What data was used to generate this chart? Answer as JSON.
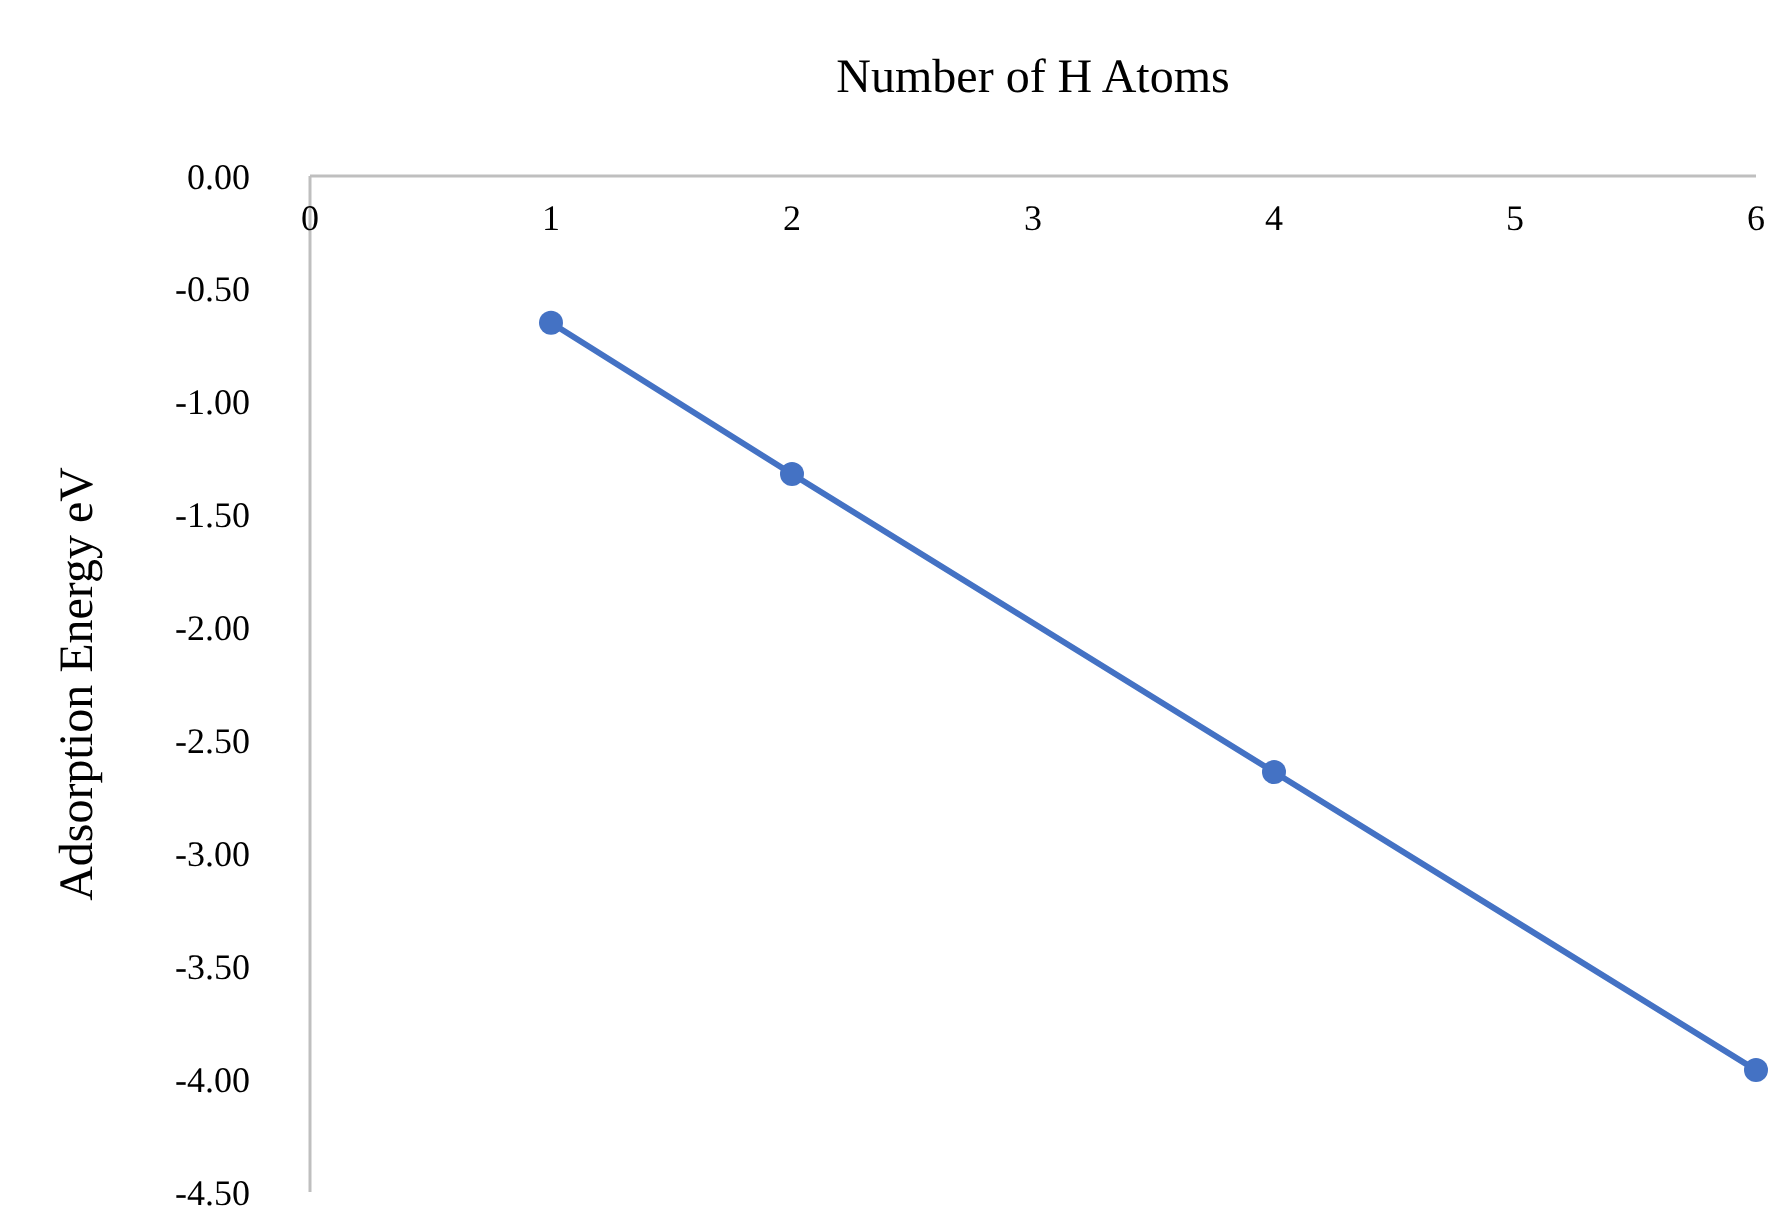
{
  "chart_data": {
    "type": "line",
    "xlabel": "Number of H Atoms",
    "ylabel": "Adsorption Energy eV",
    "x": [
      1,
      2,
      4,
      6
    ],
    "series": [
      {
        "color": "#4472c4",
        "values": [
          -0.65,
          -1.32,
          -2.64,
          -3.96
        ]
      }
    ],
    "xlim": [
      0,
      6
    ],
    "xticks": [
      0,
      1,
      2,
      3,
      4,
      5,
      6
    ],
    "ylim": [
      -4.5,
      0
    ],
    "yticks": [
      {
        "value": 0,
        "label": "0.00"
      },
      {
        "value": -0.5,
        "label": "-0.50"
      },
      {
        "value": -1,
        "label": "-1.00"
      },
      {
        "value": -1.5,
        "label": "-1.50"
      },
      {
        "value": -2,
        "label": "-2.00"
      },
      {
        "value": -2.5,
        "label": "-2.50"
      },
      {
        "value": -3,
        "label": "-3.00"
      },
      {
        "value": -3.5,
        "label": "-3.50"
      },
      {
        "value": -4,
        "label": "-4.00"
      },
      {
        "value": -4.5,
        "label": "-4.50"
      }
    ],
    "marker": "circle",
    "line_style": "solid",
    "grid": false
  }
}
